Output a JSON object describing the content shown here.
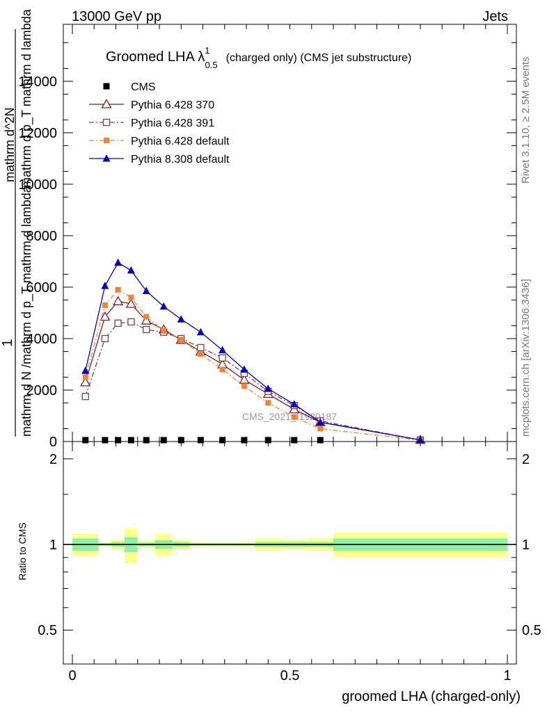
{
  "header": {
    "left": "13000 GeV pp",
    "right": "Jets"
  },
  "side_labels": {
    "rivet": "Rivet 3.1.10, ≥ 2.5M events",
    "mcplots": "mcplots.cern.ch [arXiv:1306.3436]"
  },
  "watermark": "CMS_2021_I1920187",
  "colors": {
    "cms": "#000000",
    "py370": "#8b1a1a",
    "py391": "#704050",
    "pydef": "#f58232",
    "py8": "#0000cc",
    "band_yellow": "#ffff8c",
    "band_green": "#8ef0a6"
  },
  "chart_data": [
    {
      "type": "line",
      "title_main": "Groomed LHA λ",
      "title_sup": "1",
      "title_sub": "0.5",
      "title_rest": "(charged only) (CMS jet substructure)",
      "ylabel_main": "mathrm d N /mathrm d p_T mathrm d lambda",
      "ylabel_numerator": "mathrm d^2N",
      "ylabel_denominator": "mathrm d p_T mathrm d lambda",
      "ylabel_prefix": "1",
      "xlim": [
        0,
        1
      ],
      "ylim": [
        0,
        15700
      ],
      "y_ticks": [
        "0",
        "2000",
        "4000",
        "6000",
        "8000",
        "10000",
        "12000",
        "14000"
      ],
      "y_tick_values": [
        0,
        2000,
        4000,
        6000,
        8000,
        10000,
        12000,
        14000
      ],
      "x": [
        0.03,
        0.075,
        0.105,
        0.135,
        0.17,
        0.21,
        0.25,
        0.295,
        0.345,
        0.395,
        0.45,
        0.51,
        0.57,
        0.8
      ],
      "series": [
        {
          "name": "CMS",
          "marker": "square",
          "style": "none",
          "values": [
            0,
            0,
            0,
            0,
            0,
            0,
            0,
            0,
            0,
            0,
            0,
            0,
            0,
            null
          ]
        },
        {
          "name": "Pythia 6.428 370",
          "marker": "triangle-open",
          "style": "solid",
          "values": [
            2300,
            4850,
            5450,
            5350,
            4700,
            4350,
            3950,
            3500,
            3000,
            2400,
            1850,
            1250,
            750,
            60
          ]
        },
        {
          "name": "Pythia 6.428 391",
          "marker": "square-open",
          "style": "dashdot",
          "values": [
            1750,
            4000,
            4600,
            4650,
            4350,
            4250,
            4000,
            3650,
            3250,
            2650,
            1950,
            1400,
            800,
            60
          ]
        },
        {
          "name": "Pythia 6.428 default",
          "marker": "square-filled",
          "style": "dashdot",
          "values": [
            2500,
            5300,
            5900,
            5600,
            4850,
            4300,
            3950,
            3400,
            2800,
            2150,
            1500,
            950,
            500,
            50
          ]
        },
        {
          "name": "Pythia 8.308 default",
          "marker": "triangle-filled",
          "style": "solid",
          "values": [
            2750,
            6050,
            6950,
            6650,
            5850,
            5250,
            4750,
            4250,
            3550,
            2800,
            2050,
            1450,
            750,
            60
          ]
        }
      ]
    },
    {
      "type": "area",
      "ylabel": "Ratio to CMS",
      "xlabel": "groomed LHA (charged-only)",
      "xlim": [
        0,
        1
      ],
      "ylim": [
        0.38,
        2.3
      ],
      "x_ticks": [
        "0",
        "0.5",
        "1"
      ],
      "x_tick_values": [
        0,
        0.5,
        1
      ],
      "y_ticks": [
        "0.5",
        "1",
        "2"
      ],
      "y_tick_values": [
        0.5,
        1,
        2
      ],
      "reference": 1,
      "bins": [
        {
          "lo": 0.0,
          "hi": 0.06,
          "yellow": 0.09,
          "green": 0.05
        },
        {
          "lo": 0.06,
          "hi": 0.09,
          "yellow": 0.02,
          "green": 0.01
        },
        {
          "lo": 0.09,
          "hi": 0.12,
          "yellow": 0.04,
          "green": 0.02
        },
        {
          "lo": 0.12,
          "hi": 0.15,
          "yellow": 0.14,
          "green": 0.06
        },
        {
          "lo": 0.15,
          "hi": 0.19,
          "yellow": 0.03,
          "green": 0.015
        },
        {
          "lo": 0.19,
          "hi": 0.23,
          "yellow": 0.09,
          "green": 0.035
        },
        {
          "lo": 0.23,
          "hi": 0.27,
          "yellow": 0.04,
          "green": 0.02
        },
        {
          "lo": 0.27,
          "hi": 0.32,
          "yellow": 0.02,
          "green": 0.01
        },
        {
          "lo": 0.32,
          "hi": 0.37,
          "yellow": 0.02,
          "green": 0.01
        },
        {
          "lo": 0.37,
          "hi": 0.42,
          "yellow": 0.02,
          "green": 0.01
        },
        {
          "lo": 0.42,
          "hi": 0.48,
          "yellow": 0.05,
          "green": 0.02
        },
        {
          "lo": 0.48,
          "hi": 0.54,
          "yellow": 0.04,
          "green": 0.02
        },
        {
          "lo": 0.54,
          "hi": 0.6,
          "yellow": 0.05,
          "green": 0.02
        },
        {
          "lo": 0.6,
          "hi": 1.0,
          "yellow": 0.1,
          "green": 0.05
        }
      ]
    }
  ]
}
